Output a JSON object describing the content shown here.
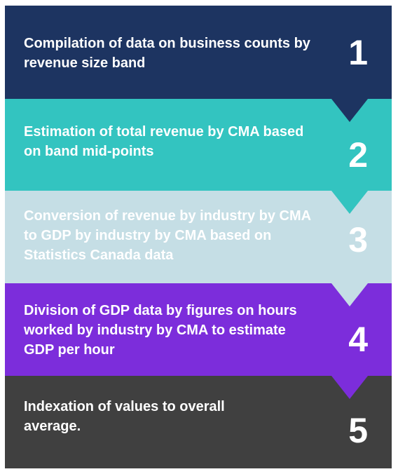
{
  "steps": [
    {
      "number": "1",
      "text": "Compilation of data on business counts by revenue size band",
      "color": "#1d3461"
    },
    {
      "number": "2",
      "text": "Estimation of total revenue by CMA based on band mid-points",
      "color": "#33c4c0"
    },
    {
      "number": "3",
      "text": "Conversion of revenue by industry by CMA to GDP by industry by CMA based on Statistics Canada data",
      "color": "#c5dee5"
    },
    {
      "number": "4",
      "text": "Division of GDP data by figures on hours worked by industry by CMA to estimate GDP per hour",
      "color": "#7c2ddb"
    },
    {
      "number": "5",
      "text": "Indexation of values to overall average.",
      "color": "#404040"
    }
  ]
}
